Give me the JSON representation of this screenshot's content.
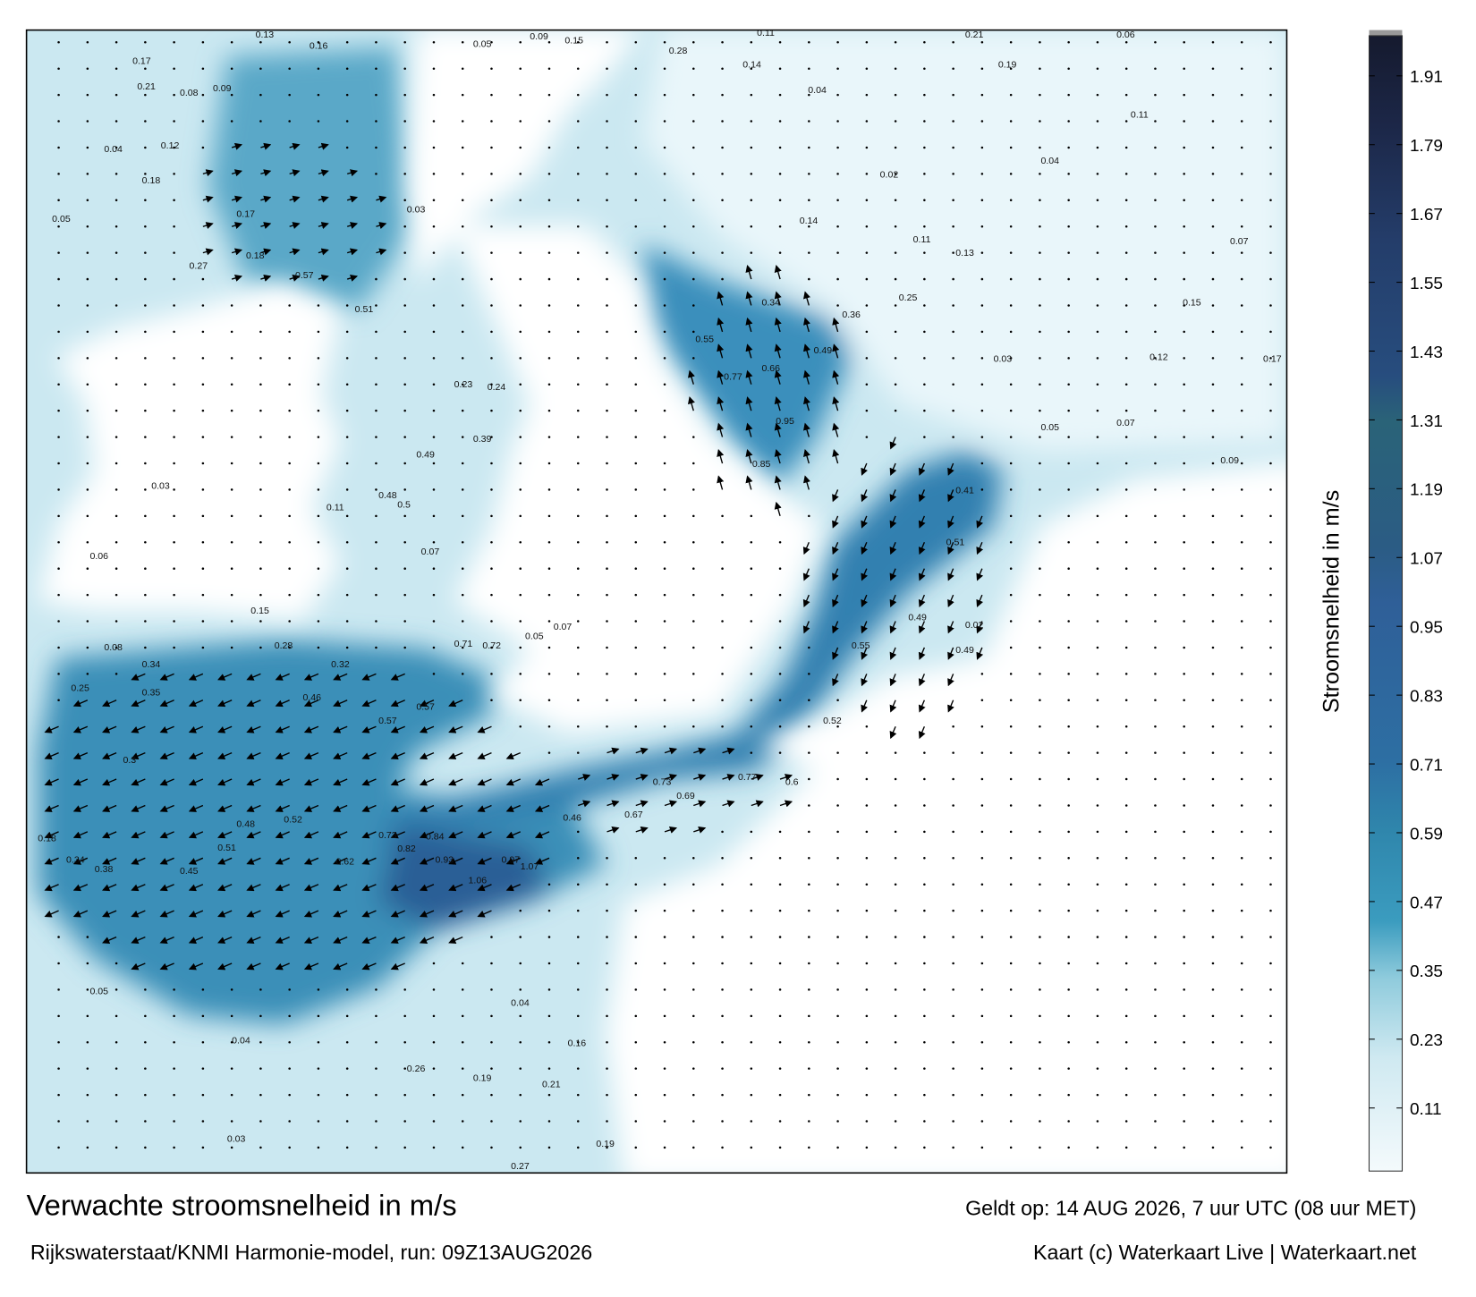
{
  "title": "Verwachte stroomsnelheid in m/s",
  "model_run": "Rijkswaterstaat/KNMI Harmonie-model, run: 09Z13AUG2026",
  "valid_time": "Geldt op: 14 AUG 2026, 7 uur UTC (08 uur MET)",
  "credit": "Kaart (c) Waterkaart Live | Waterkaart.net",
  "colorbar": {
    "label": "Stroomsnelheid in m/s",
    "lim": [
      0,
      1.98
    ],
    "ticks": [
      0.11,
      0.23,
      0.35,
      0.47,
      0.59,
      0.71,
      0.83,
      0.95,
      1.07,
      1.19,
      1.31,
      1.43,
      1.55,
      1.67,
      1.79,
      1.91
    ]
  },
  "map": {
    "current_labels": [
      0.13,
      0.16,
      0.17,
      0.21,
      0.08,
      0.09,
      0.04,
      0.12,
      0.05,
      0.18,
      0.17,
      0.18,
      0.57,
      0.51,
      0.27,
      0.03,
      0.05,
      0.09,
      0.15,
      0.28,
      0.11,
      0.04,
      0.14,
      0.21,
      0.06,
      0.19,
      0.04,
      0.11,
      0.02,
      0.14,
      0.11,
      0.13,
      0.07,
      0.15,
      0.25,
      0.36,
      0.34,
      0.55,
      0.77,
      0.66,
      0.85,
      0.95,
      0.49,
      0.03,
      0.12,
      0.17,
      0.09,
      0.07,
      0.05,
      0.41,
      0.51,
      0.49,
      0.49,
      0.02,
      0.55,
      0.52,
      0.6,
      0.77,
      0.73,
      0.69,
      0.67,
      0.46,
      1.07,
      0.97,
      1.06,
      0.93,
      0.84,
      0.82,
      0.73,
      0.62,
      0.52,
      0.48,
      0.51,
      0.45,
      0.38,
      0.34,
      0.18,
      0.3,
      0.35,
      0.46,
      0.57,
      0.57,
      0.71,
      0.72,
      0.05,
      0.07,
      0.32,
      0.28,
      0.34,
      0.08,
      0.25,
      0.15,
      0.07,
      0.5,
      0.48,
      0.49,
      0.39,
      0.24,
      0.23,
      0.11,
      0.03,
      0.06,
      0.04,
      0.03,
      0.05,
      0.26,
      0.19,
      0.04,
      0.21,
      0.19,
      0.27,
      0.16
    ]
  }
}
